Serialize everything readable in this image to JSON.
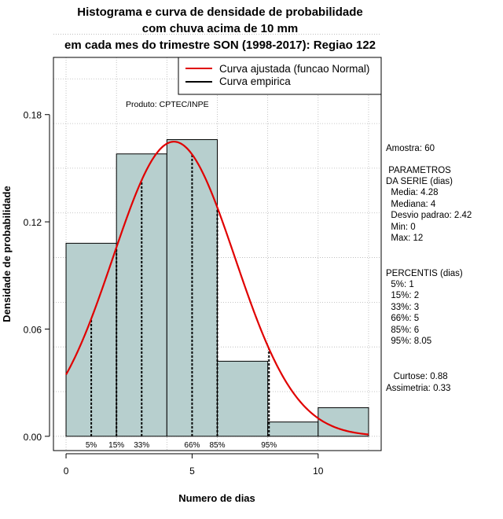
{
  "title_lines": [
    "Histograma e curva de densidade de probabilidade",
    "com chuva acima de 10 mm",
    "em cada mes do trimestre SON (1998-2017): Regiao 122"
  ],
  "legend": {
    "fitted": "Curva ajustada (funcao Normal)",
    "empirical": "Curva empirica"
  },
  "product_label": "Produto: CPTEC/INPE",
  "side": {
    "sample": "Amostra: 60",
    "params_header_1": " PARAMETROS",
    "params_header_2": "DA SERIE (dias)",
    "mean": "  Media: 4.28",
    "median": "  Mediana: 4",
    "stddev": "  Desvio padrao: 2.42",
    "min": "  Min: 0",
    "max": "  Max: 12",
    "pct_header": "PERCENTIS (dias)",
    "p5": "  5%: 1",
    "p15": "  15%: 2",
    "p33": "  33%: 3",
    "p66": "  66%: 5",
    "p85": "  85%: 6",
    "p95": "  95%: 8.05",
    "kurtosis": "   Curtose: 0.88",
    "skewness": "Assimetria: 0.33"
  },
  "colors": {
    "bar_fill": "#b7cfce",
    "fit_curve": "#e00000",
    "grid": "#b4b4b4"
  },
  "chart_data": {
    "type": "bar",
    "xlabel": "Numero de dias",
    "ylabel": "Densidade de probabilidade",
    "xlim": [
      -0.5,
      12.5
    ],
    "ylim": [
      -0.008,
      0.212
    ],
    "x_ticks": [
      0,
      5,
      10
    ],
    "y_ticks": [
      0.0,
      0.06,
      0.12,
      0.18
    ],
    "y_tick_labels": [
      "0.00",
      "0.06",
      "0.12",
      "0.18"
    ],
    "bins": [
      {
        "start": 0,
        "end": 2,
        "density": 0.108
      },
      {
        "start": 2,
        "end": 4,
        "density": 0.158
      },
      {
        "start": 4,
        "end": 6,
        "density": 0.166
      },
      {
        "start": 6,
        "end": 8,
        "density": 0.042
      },
      {
        "start": 8,
        "end": 10,
        "density": 0.008
      },
      {
        "start": 10,
        "end": 12,
        "density": 0.016
      }
    ],
    "fit_normal": {
      "mean": 4.28,
      "sd": 2.42,
      "x_range": [
        0,
        12
      ]
    },
    "percentiles": [
      {
        "label": "5%",
        "x": 1
      },
      {
        "label": "15%",
        "x": 2
      },
      {
        "label": "33%",
        "x": 3
      },
      {
        "label": "66%",
        "x": 5
      },
      {
        "label": "85%",
        "x": 6
      },
      {
        "label": "95%",
        "x": 8.05
      }
    ]
  }
}
